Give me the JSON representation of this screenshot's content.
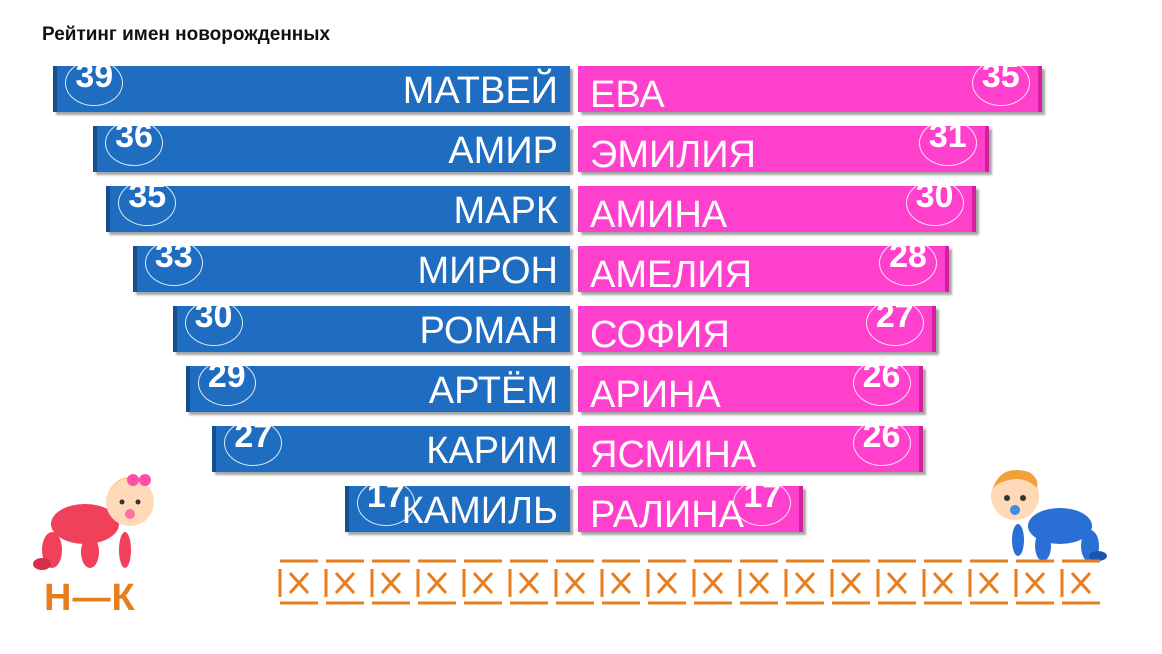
{
  "title": "Рейтинг имен новорожденных",
  "logo_text": "Н—К",
  "colors": {
    "boys": "#1f6dc0",
    "girls": "#ff40cc",
    "accent": "#e67d1e"
  },
  "chart_data": {
    "type": "bar",
    "title": "Рейтинг имен новорожденных",
    "orientation": "horizontal-mirrored",
    "boys": {
      "names": [
        "МАТВЕЙ",
        "АМИР",
        "МАРК",
        "МИРОН",
        "РОМАН",
        "АРТЁМ",
        "КАРИМ",
        "КАМИЛЬ"
      ],
      "values": [
        39,
        36,
        35,
        33,
        30,
        29,
        27,
        17
      ]
    },
    "girls": {
      "names": [
        "ЕВА",
        "ЭМИЛИЯ",
        "АМИНА",
        "АМЕЛИЯ",
        "СОФИЯ",
        "АРИНА",
        "ЯСМИНА",
        "РАЛИНА"
      ],
      "values": [
        35,
        31,
        30,
        28,
        27,
        26,
        26,
        17
      ]
    }
  },
  "icons": {
    "left_baby": "baby-girl-crawling-icon",
    "right_baby": "baby-boy-crawling-icon",
    "crosses": "cross-box-icon"
  }
}
